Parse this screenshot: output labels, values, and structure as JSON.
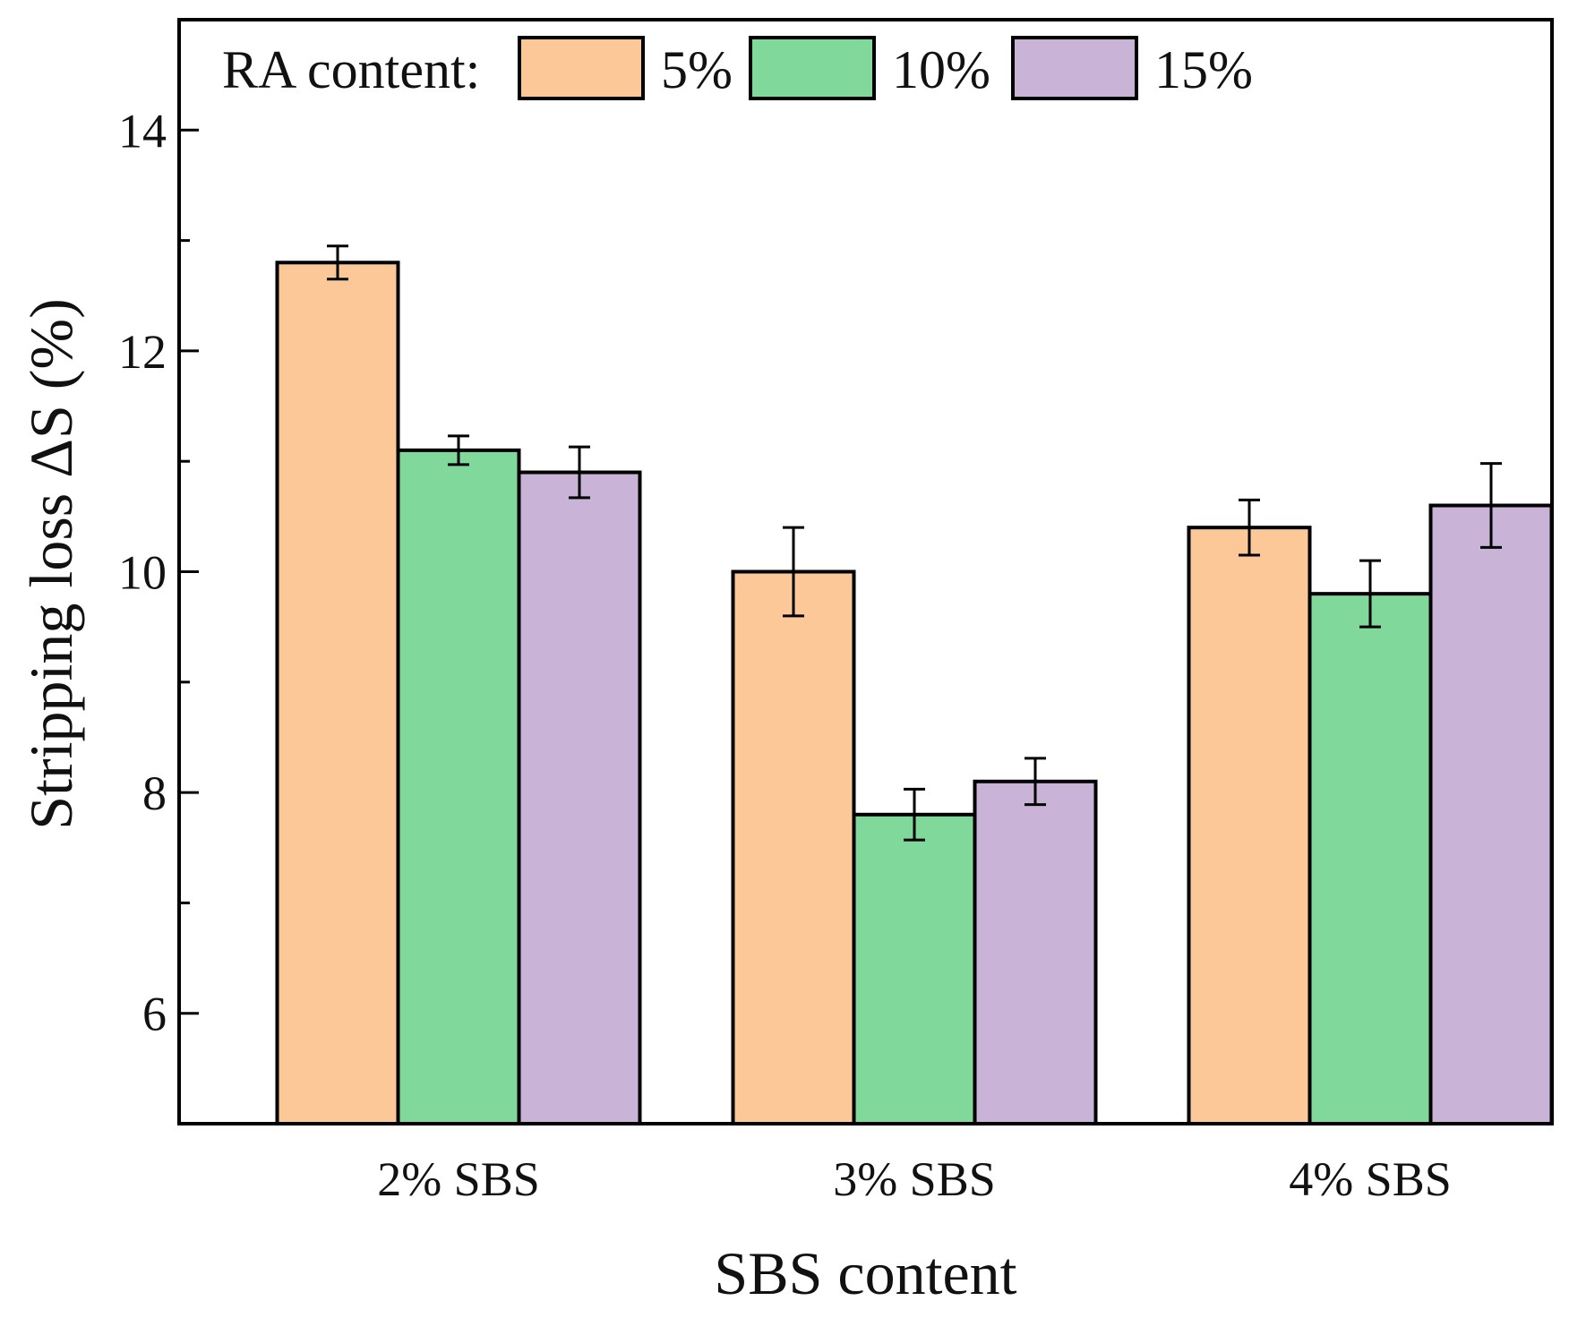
{
  "chart_data": {
    "type": "bar",
    "xlabel": "SBS content",
    "ylabel": "Stripping loss ΔS (%)",
    "ylim": [
      5,
      15
    ],
    "y_ticks": [
      6,
      8,
      10,
      12,
      14
    ],
    "y_tick_labels": [
      "6",
      "8",
      "10",
      "12",
      "14"
    ],
    "categories": [
      "2% SBS",
      "3% SBS",
      "4% SBS"
    ],
    "legend": {
      "title": "RA content:",
      "placement": "top-left"
    },
    "series": [
      {
        "name": "5%",
        "color": "#FDC897",
        "values": [
          12.8,
          10.0,
          10.4
        ],
        "errors": [
          0.15,
          0.4,
          0.25
        ]
      },
      {
        "name": "10%",
        "color": "#80D99B",
        "values": [
          11.1,
          7.8,
          9.8
        ],
        "errors": [
          0.13,
          0.23,
          0.3
        ]
      },
      {
        "name": "15%",
        "color": "#C9B3D6",
        "values": [
          10.9,
          8.1,
          10.6
        ],
        "errors": [
          0.23,
          0.21,
          0.38
        ]
      }
    ],
    "grid": false
  }
}
